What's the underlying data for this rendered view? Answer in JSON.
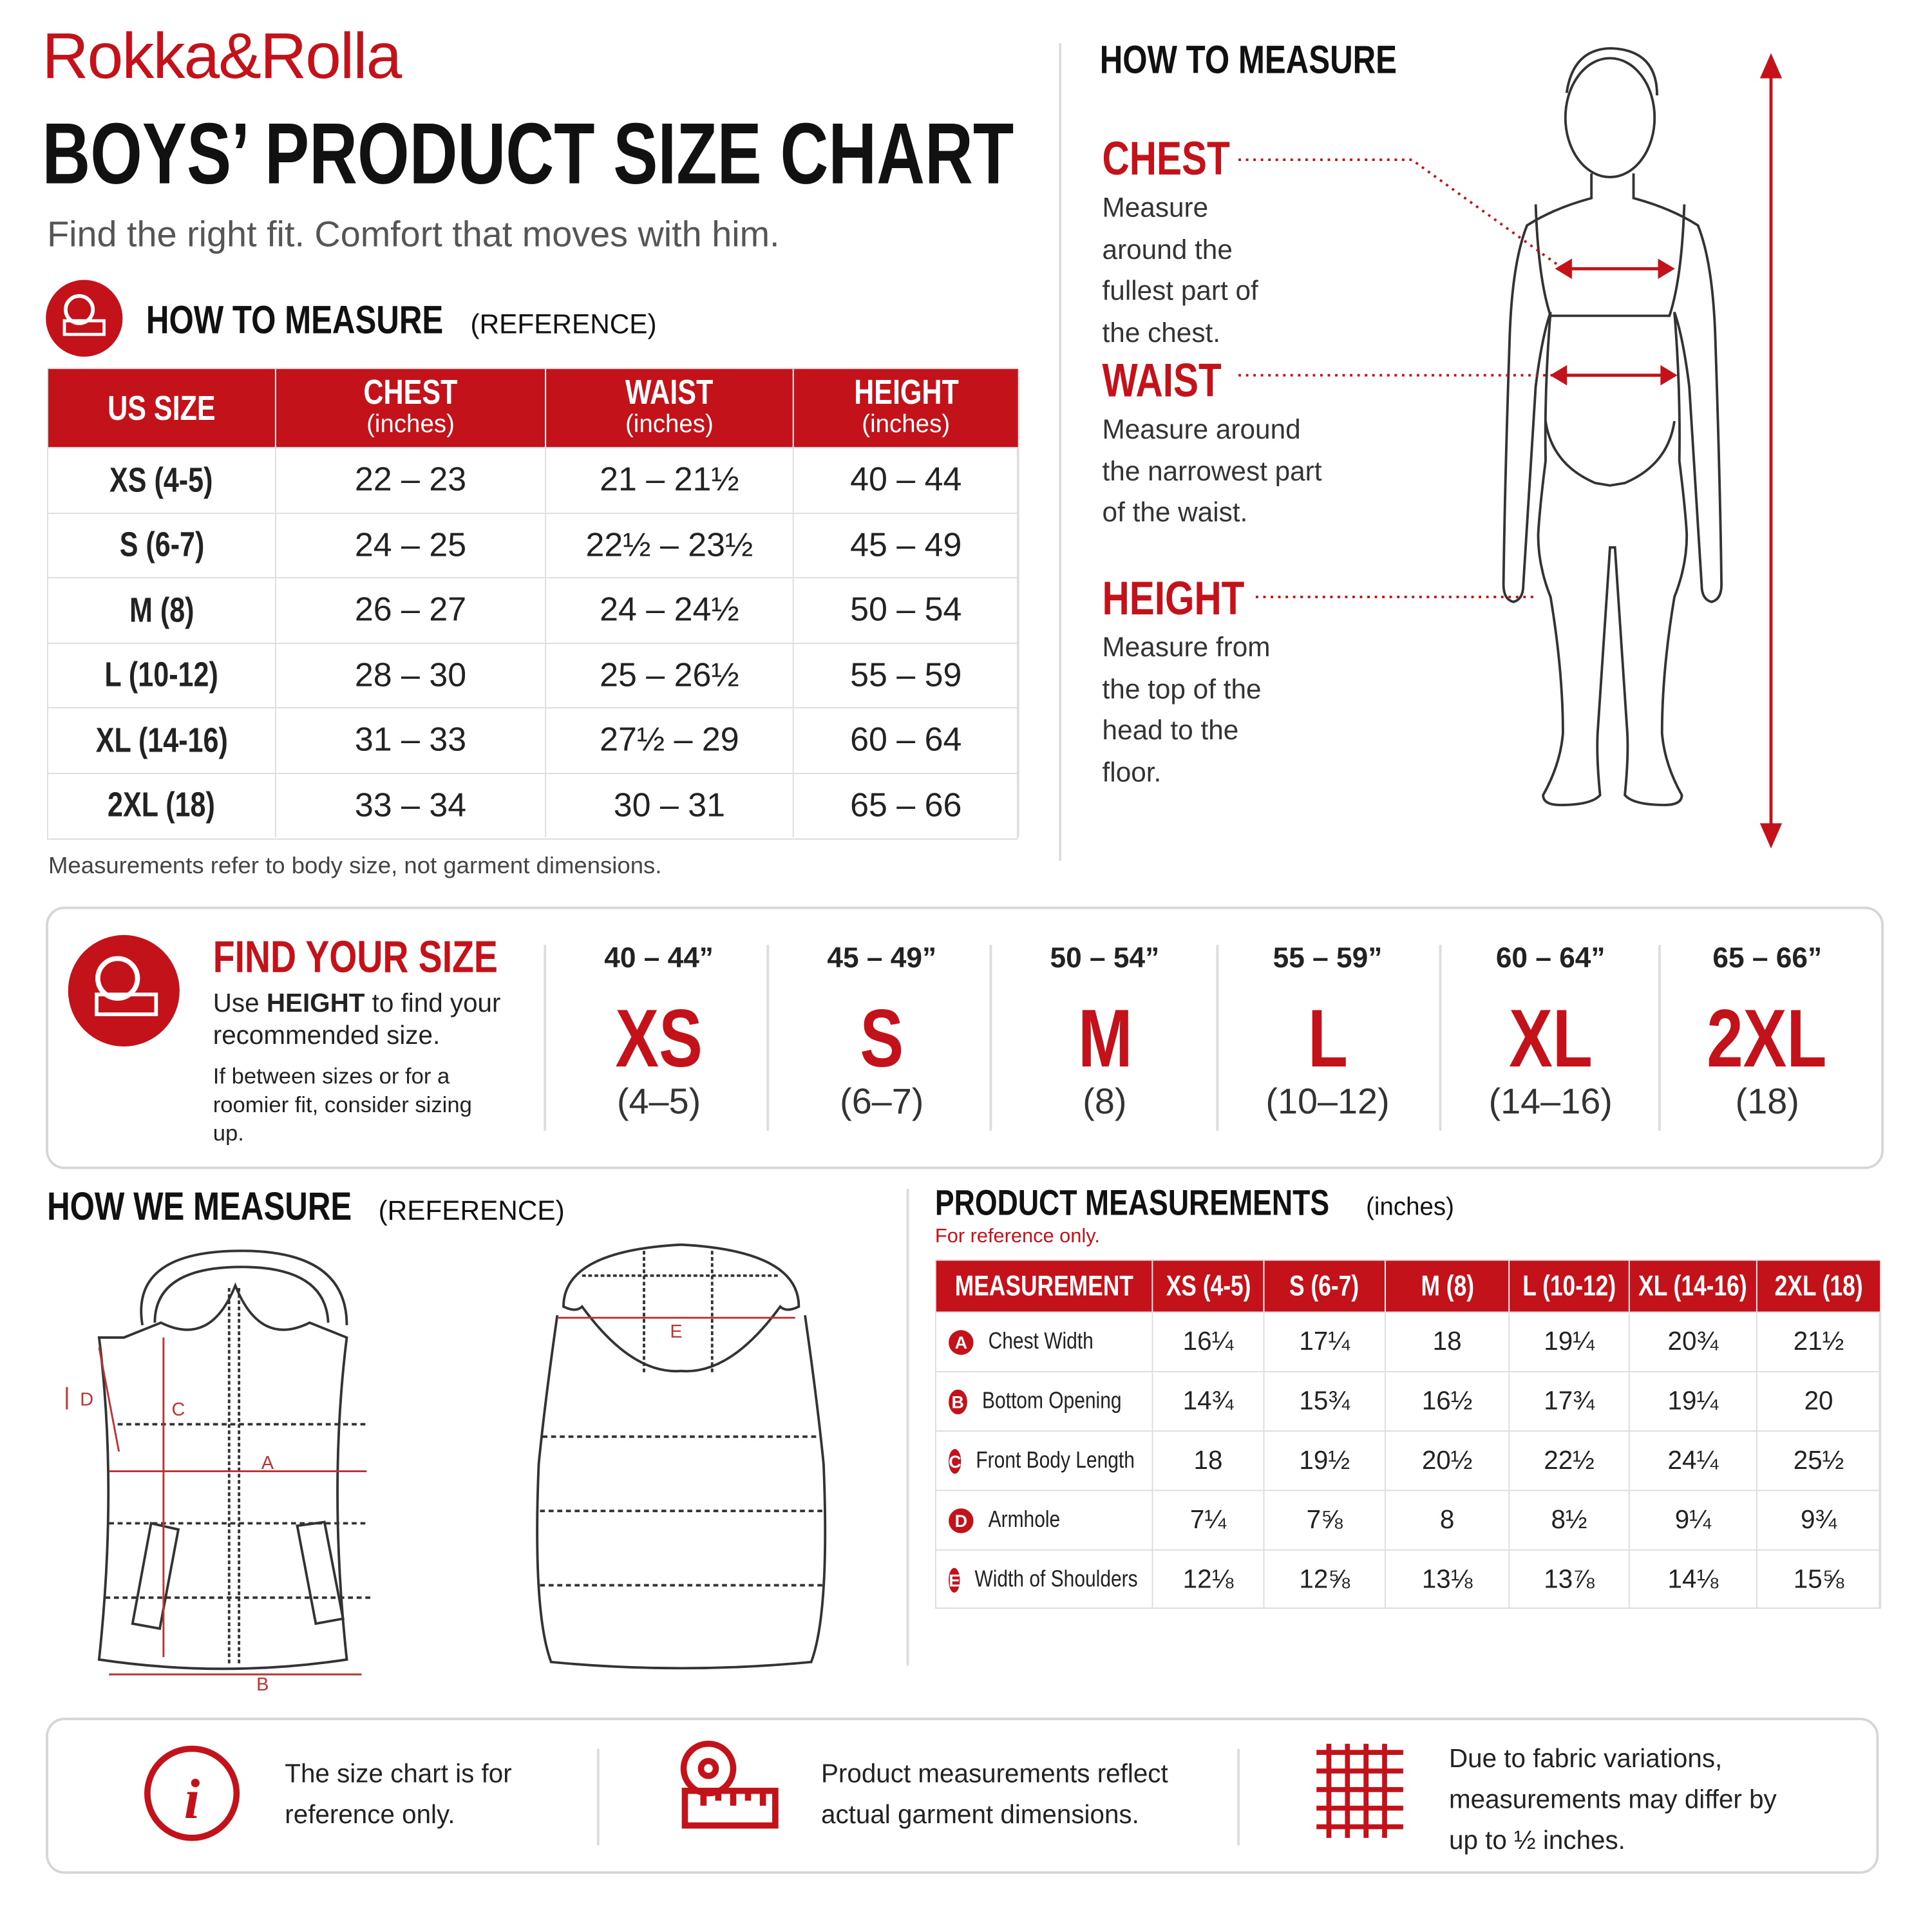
{
  "header": {
    "brand": "Rokka&Rolla",
    "title": "BOYS’ PRODUCT SIZE CHART",
    "subtitle": "Find the right fit. Comfort that moves with him."
  },
  "body_table": {
    "title": "HOW TO MEASURE",
    "title_note": "(REFERENCE)",
    "columns": [
      {
        "label": "US SIZE"
      },
      {
        "label": "CHEST",
        "unit": "(inches)"
      },
      {
        "label": "WAIST",
        "unit": "(inches)"
      },
      {
        "label": "HEIGHT",
        "unit": "(inches)"
      }
    ],
    "rows": [
      [
        "XS (4-5)",
        "22 – 23",
        "21 – 21½",
        "40 – 44"
      ],
      [
        "S (6-7)",
        "24 – 25",
        "22½ – 23½",
        "45 – 49"
      ],
      [
        "M (8)",
        "26 – 27",
        "24 – 24½",
        "50 – 54"
      ],
      [
        "L (10-12)",
        "28 – 30",
        "25 – 26½",
        "55 – 59"
      ],
      [
        "XL (14-16)",
        "31 – 33",
        "27½ – 29",
        "60 – 64"
      ],
      [
        "2XL (18)",
        "33 – 34",
        "30 – 31",
        "65 – 66"
      ]
    ],
    "note": "Measurements refer to body size, not garment dimensions."
  },
  "how_to_measure": {
    "title": "HOW TO MEASURE",
    "items": [
      {
        "label": "CHEST",
        "text": "Measure around the fullest part of the chest."
      },
      {
        "label": "WAIST",
        "text": "Measure around the narrowest part of the waist."
      },
      {
        "label": "HEIGHT",
        "text": "Measure from the top of the head to the floor."
      }
    ]
  },
  "find_size": {
    "title": "FIND YOUR SIZE",
    "text_pre": "Use",
    "text_bold": "HEIGHT",
    "text_post": "to find your recommended size.",
    "note": "If between sizes or for a roomier fit, consider sizing up.",
    "sizes": [
      {
        "height": "40 – 44”",
        "size": "XS",
        "range": "(4–5)"
      },
      {
        "height": "45 – 49”",
        "size": "S",
        "range": "(6–7)"
      },
      {
        "height": "50 – 54”",
        "size": "M",
        "range": "(8)"
      },
      {
        "height": "55 – 59”",
        "size": "L",
        "range": "(10–12)"
      },
      {
        "height": "60 – 64”",
        "size": "XL",
        "range": "(14–16)"
      },
      {
        "height": "65 – 66”",
        "size": "2XL",
        "range": "(18)"
      }
    ]
  },
  "how_we_measure": {
    "title": "HOW WE MEASURE",
    "title_note": "(REFERENCE)",
    "labels": [
      "A",
      "B",
      "C",
      "D",
      "E"
    ]
  },
  "product_table": {
    "title": "PRODUCT MEASUREMENTS",
    "title_note": "(inches)",
    "note": "For reference only.",
    "header": [
      "MEASUREMENT",
      "XS (4-5)",
      "S (6-7)",
      "M (8)",
      "L (10-12)",
      "XL (14-16)",
      "2XL (18)"
    ],
    "rows": [
      {
        "key": "A",
        "name": "Chest Width",
        "values": [
          "16¼",
          "17¼",
          "18",
          "19¼",
          "20¾",
          "21½"
        ]
      },
      {
        "key": "B",
        "name": "Bottom Opening",
        "values": [
          "14¾",
          "15¾",
          "16½",
          "17¾",
          "19¼",
          "20"
        ]
      },
      {
        "key": "C",
        "name": "Front Body Length",
        "values": [
          "18",
          "19½",
          "20½",
          "22½",
          "24¼",
          "25½"
        ]
      },
      {
        "key": "D",
        "name": "Armhole",
        "values": [
          "7¼",
          "7⅝",
          "8",
          "8½",
          "9¼",
          "9¾"
        ]
      },
      {
        "key": "E",
        "name": "Width of Shoulders",
        "values": [
          "12⅛",
          "12⅝",
          "13⅛",
          "13⅞",
          "14⅛",
          "15⅝"
        ]
      }
    ]
  },
  "footer": [
    "The size chart is for reference only.",
    "Product measurements reflect actual garment dimensions.",
    "Due to fabric variations, measurements may differ by up to ½ inches."
  ]
}
